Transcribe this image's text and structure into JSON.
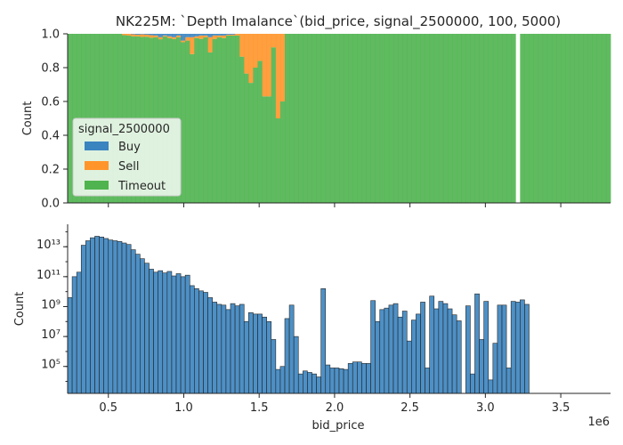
{
  "chart_data": [
    {
      "type": "bar",
      "stacked": "fill",
      "title": "NK225M: `Depth Imalance`(bid_price, signal_2500000, 100, 5000)",
      "xlabel": "",
      "ylabel": "Count",
      "ylim": [
        0,
        1
      ],
      "xlim": [
        230000,
        3830000
      ],
      "bin_width": 30000,
      "yticks": [
        "0.0",
        "0.2",
        "0.4",
        "0.6",
        "0.8",
        "1.0"
      ],
      "legend": {
        "title": "signal_2500000",
        "placement": "center-left",
        "entries": [
          "Buy",
          "Sell",
          "Timeout"
        ]
      },
      "colors": {
        "Buy": "#3a84c0",
        "Sell": "#ff952a",
        "Timeout": "#4fb44f"
      },
      "fractions": [
        {
          "bin": 12,
          "buy": 0,
          "sell": 0.008
        },
        {
          "bin": 13,
          "buy": 0,
          "sell": 0.01
        },
        {
          "bin": 14,
          "buy": 0.003,
          "sell": 0.012
        },
        {
          "bin": 15,
          "buy": 0.005,
          "sell": 0.01
        },
        {
          "bin": 16,
          "buy": 0.003,
          "sell": 0.015
        },
        {
          "bin": 17,
          "buy": 0.005,
          "sell": 0.012
        },
        {
          "bin": 18,
          "buy": 0.008,
          "sell": 0.015
        },
        {
          "bin": 19,
          "buy": 0.01,
          "sell": 0.01
        },
        {
          "bin": 20,
          "buy": 0.02,
          "sell": 0.012
        },
        {
          "bin": 21,
          "buy": 0.01,
          "sell": 0.005
        },
        {
          "bin": 22,
          "buy": 0.015,
          "sell": 0.01
        },
        {
          "bin": 23,
          "buy": 0.02,
          "sell": 0.01
        },
        {
          "bin": 24,
          "buy": 0.01,
          "sell": 0.01
        },
        {
          "bin": 25,
          "buy": 0.04,
          "sell": 0.01
        },
        {
          "bin": 26,
          "buy": 0.02,
          "sell": 0.02
        },
        {
          "bin": 27,
          "buy": 0.02,
          "sell": 0.1
        },
        {
          "bin": 28,
          "buy": 0.015,
          "sell": 0.01
        },
        {
          "bin": 29,
          "buy": 0.01,
          "sell": 0.02
        },
        {
          "bin": 30,
          "buy": 0.01,
          "sell": 0.01
        },
        {
          "bin": 31,
          "buy": 0.02,
          "sell": 0.09
        },
        {
          "bin": 32,
          "buy": 0.01,
          "sell": 0.02
        },
        {
          "bin": 33,
          "buy": 0.01,
          "sell": 0.01
        },
        {
          "bin": 34,
          "buy": 0.01,
          "sell": 0.015
        },
        {
          "bin": 35,
          "buy": 0.005,
          "sell": 0.005
        },
        {
          "bin": 36,
          "buy": 0.005,
          "sell": 0.005
        },
        {
          "bin": 37,
          "buy": 0,
          "sell": 0.01
        },
        {
          "bin": 38,
          "buy": 0,
          "sell": 0.135
        },
        {
          "bin": 39,
          "buy": 0,
          "sell": 0.235
        },
        {
          "bin": 40,
          "buy": 0,
          "sell": 0.29
        },
        {
          "bin": 41,
          "buy": 0,
          "sell": 0.2
        },
        {
          "bin": 42,
          "buy": 0,
          "sell": 0.16
        },
        {
          "bin": 43,
          "buy": 0,
          "sell": 0.37
        },
        {
          "bin": 44,
          "buy": 0,
          "sell": 0.37
        },
        {
          "bin": 45,
          "buy": 0,
          "sell": 0.08
        },
        {
          "bin": 46,
          "buy": 0,
          "sell": 0.5
        },
        {
          "bin": 47,
          "buy": 0,
          "sell": 0.4
        }
      ],
      "empty_bins": [
        99
      ]
    },
    {
      "type": "bar",
      "xlabel": "bid_price",
      "ylabel": "Count",
      "yscale": "log",
      "offset_label": "1e6",
      "xlim": [
        230000,
        3830000
      ],
      "ylim_log10": [
        3.2,
        14.5
      ],
      "bin_width": 30000,
      "color": "#3a84c0",
      "xticks": [
        {
          "value": 500000,
          "label": "0.5"
        },
        {
          "value": 1000000,
          "label": "1.0"
        },
        {
          "value": 1500000,
          "label": "1.5"
        },
        {
          "value": 2000000,
          "label": "2.0"
        },
        {
          "value": 2500000,
          "label": "2.5"
        },
        {
          "value": 3000000,
          "label": "3.0"
        },
        {
          "value": 3500000,
          "label": "3.5"
        }
      ],
      "yticks": [
        {
          "exp": 5,
          "label": "10⁵"
        },
        {
          "exp": 7,
          "label": "10⁷"
        },
        {
          "exp": 9,
          "label": "10⁹"
        },
        {
          "exp": 11,
          "label": "10¹¹"
        },
        {
          "exp": 13,
          "label": "10¹³"
        }
      ],
      "log10_counts": [
        9.6,
        11,
        11.3,
        13.1,
        13.4,
        13.6,
        13.7,
        13.65,
        13.55,
        13.45,
        13.4,
        13.35,
        13.25,
        13.15,
        12.8,
        12.5,
        12.2,
        11.9,
        11.5,
        11.3,
        11.4,
        11.25,
        11.35,
        11.05,
        11.2,
        11,
        11.1,
        10.4,
        10.2,
        10.05,
        9.95,
        9.6,
        9.3,
        9.15,
        9.1,
        8.8,
        9.2,
        9.05,
        9.15,
        8,
        8.6,
        8.5,
        8.5,
        8.3,
        8,
        6.8,
        4.8,
        5,
        8.2,
        9.1,
        7,
        4.5,
        4.7,
        4.6,
        4.5,
        4.3,
        10.2,
        5.1,
        4.9,
        4.9,
        4.85,
        4.8,
        5.2,
        5.3,
        5.3,
        5.2,
        5.2,
        9.4,
        8,
        8.8,
        8.9,
        9.1,
        9.2,
        8.3,
        8.7,
        6.7,
        8.1,
        8.5,
        9.3,
        4.9,
        9.7,
        8.85,
        9.35,
        9.2,
        8.85,
        8.45,
        8.05,
        null,
        9.05,
        4.5,
        9.85,
        6.8,
        9.35,
        4.1,
        6.55,
        9.1,
        9.1,
        4.9,
        9.35,
        9.3,
        9.45,
        9.15
      ]
    }
  ]
}
